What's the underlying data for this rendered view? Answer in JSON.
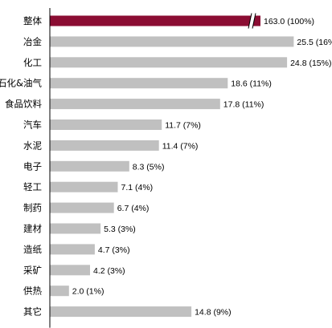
{
  "chart_data": {
    "type": "bar",
    "orientation": "horizontal",
    "title": "",
    "xlabel": "",
    "ylabel": "",
    "categories": [
      "整体",
      "冶金",
      "化工",
      "石化&油气",
      "食品饮料",
      "汽车",
      "水泥",
      "电子",
      "轻工",
      "制药",
      "建材",
      "造纸",
      "采矿",
      "供热",
      "其它"
    ],
    "values": [
      163.0,
      25.5,
      24.8,
      18.6,
      17.8,
      11.7,
      11.4,
      8.3,
      7.1,
      6.7,
      5.3,
      4.7,
      4.2,
      2.0,
      14.8
    ],
    "value_labels": [
      "163.0 (100%)",
      "25.5 (16%)",
      "24.8 (15%)",
      "18.6 (11%)",
      "17.8 (11%)",
      "11.7 (7%)",
      "11.4 (7%)",
      "8.3 (5%)",
      "7.1 (4%)",
      "6.7 (4%)",
      "5.3 (3%)",
      "4.7 (3%)",
      "4.2 (3%)",
      "2.0 (1%)",
      "14.8 (9%)"
    ],
    "axis_break": {
      "category": "整体",
      "note": "bar truncated with break marks"
    },
    "xlim": [
      0,
      28
    ],
    "grid": false,
    "legend": "none",
    "colors": {
      "highlight": "#8b0d33",
      "bar": "#c0c0c0",
      "axis": "#000000"
    }
  }
}
